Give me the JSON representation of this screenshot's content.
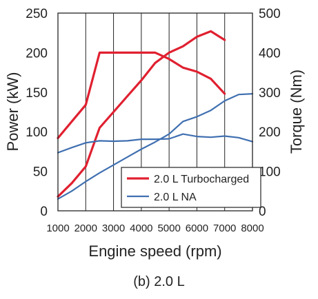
{
  "caption": "(b) 2.0 L",
  "chart_data": {
    "type": "line",
    "xlabel": "Engine speed (rpm)",
    "ylabel_left": "Power (kW)",
    "ylabel_right": "Torque (Nm)",
    "xlim": [
      1000,
      8000
    ],
    "ylim_left": [
      0,
      250
    ],
    "ylim_right": [
      0,
      500
    ],
    "x_ticks": [
      "1000",
      "2000",
      "3000",
      "4000",
      "5000",
      "6000",
      "7000",
      "8000"
    ],
    "y_ticks_left": [
      "0",
      "50",
      "100",
      "150",
      "200",
      "250"
    ],
    "y_ticks_right": [
      "0",
      "100",
      "200",
      "300",
      "400",
      "500"
    ],
    "grid": "vertical",
    "legend_position": "bottom-right",
    "legend": [
      {
        "label": "2.0 L Turbocharged",
        "color": "#e02030"
      },
      {
        "label": "2.0 L NA",
        "color": "#3f6fb0"
      }
    ],
    "series": [
      {
        "legend": 0,
        "quantity": "power",
        "axis": "left",
        "x": [
          1000,
          1500,
          2000,
          2500,
          3000,
          3500,
          4000,
          4500,
          5000,
          5500,
          6000,
          6500,
          7000
        ],
        "y": [
          18,
          35,
          56,
          105,
          125,
          145,
          165,
          187,
          200,
          208,
          220,
          227,
          216
        ]
      },
      {
        "legend": 0,
        "quantity": "torque",
        "axis": "right",
        "x": [
          1000,
          1500,
          2000,
          2500,
          3000,
          3500,
          4000,
          4500,
          5000,
          5500,
          6000,
          6500,
          7000
        ],
        "y": [
          184,
          226,
          268,
          400,
          400,
          400,
          400,
          400,
          384,
          362,
          352,
          334,
          296
        ]
      },
      {
        "legend": 1,
        "quantity": "power",
        "axis": "left",
        "x": [
          1000,
          1500,
          2000,
          2500,
          3000,
          3500,
          4000,
          4500,
          5000,
          5500,
          6000,
          6500,
          7000,
          7500,
          8000
        ],
        "y": [
          15,
          25,
          37,
          48,
          58,
          68,
          78,
          87,
          97,
          113,
          119,
          127,
          139,
          147,
          148
        ]
      },
      {
        "legend": 1,
        "quantity": "torque",
        "axis": "right",
        "x": [
          1000,
          1500,
          2000,
          2500,
          3000,
          3500,
          4000,
          4500,
          5000,
          5500,
          6000,
          6500,
          7000,
          7500,
          8000
        ],
        "y": [
          147,
          160,
          172,
          177,
          176,
          177,
          181,
          181,
          182,
          194,
          188,
          186,
          189,
          185,
          175
        ]
      }
    ]
  }
}
